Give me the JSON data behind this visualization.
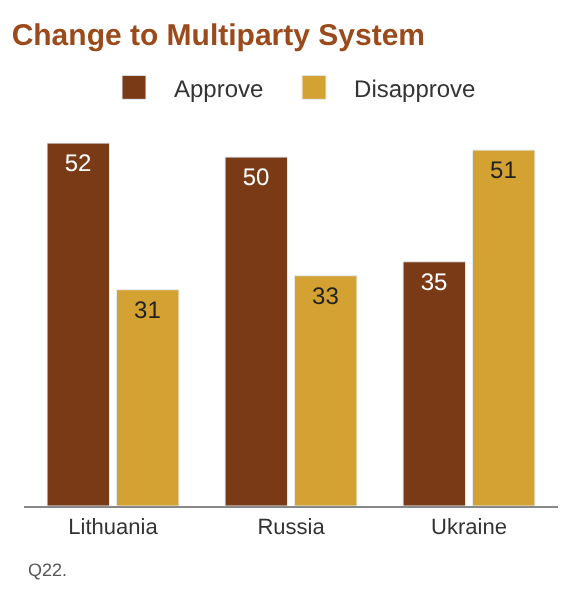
{
  "chart_data": {
    "type": "bar",
    "title": "Change to Multiparty System",
    "categories": [
      "Lithuania",
      "Russia",
      "Ukraine"
    ],
    "series": [
      {
        "name": "Approve",
        "color": "#7b3a16",
        "values": [
          52,
          50,
          35
        ]
      },
      {
        "name": "Disapprove",
        "color": "#d4a232",
        "values": [
          31,
          33,
          51
        ]
      }
    ],
    "data_labels": true,
    "legend": "top",
    "annotations": [
      "Q22."
    ]
  }
}
